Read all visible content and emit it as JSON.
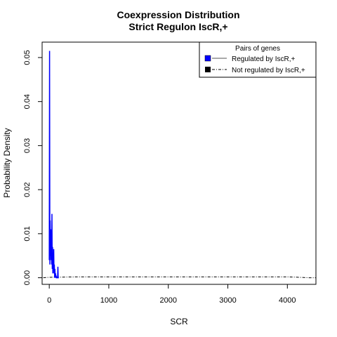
{
  "chart_data": {
    "type": "line",
    "title": "Coexpression Distribution",
    "subtitle": "Strict Regulon IscR,+",
    "xlabel": "SCR",
    "ylabel": "Probability Density",
    "xlim": [
      -120,
      4480
    ],
    "ylim": [
      -0.0015,
      0.0535
    ],
    "x_ticks": [
      0,
      1000,
      2000,
      3000,
      4000
    ],
    "x_tick_labels": [
      "0",
      "1000",
      "2000",
      "3000",
      "4000"
    ],
    "y_ticks": [
      0.0,
      0.01,
      0.02,
      0.03,
      0.04,
      0.05
    ],
    "y_tick_labels": [
      "0.00",
      "0.01",
      "0.02",
      "0.03",
      "0.04",
      "0.05"
    ],
    "grid": false,
    "legend": {
      "title": "Pairs of genes",
      "placement": "top-right",
      "entries": [
        {
          "label": "Regulated by  IscR,+",
          "color": "#0000ff",
          "line": "solid"
        },
        {
          "label": "Not regulated by  IscR,+",
          "color": "#000000",
          "line": "dashdot"
        }
      ]
    },
    "series": [
      {
        "name": "Regulated by  IscR,+",
        "color": "#0000ff",
        "x": [
          0,
          5,
          10,
          15,
          20,
          25,
          30,
          35,
          40,
          45,
          50,
          55,
          60,
          65,
          70,
          75,
          80,
          85,
          90,
          95,
          100,
          105,
          110,
          115,
          120,
          125,
          130,
          135,
          140,
          145,
          150,
          155,
          160
        ],
        "y": [
          0.004,
          0.0515,
          0.003,
          0.013,
          0.005,
          0.011,
          0.004,
          0.009,
          0.003,
          0.0145,
          0.002,
          0.007,
          0.001,
          0.004,
          0.002,
          0.0065,
          0.001,
          0.003,
          0.0,
          0.002,
          0.0,
          0.001,
          0.0,
          0.0005,
          0.0,
          0.0,
          0.0,
          0.0,
          0.0,
          0.0025,
          0.0,
          0.0,
          0.0
        ]
      },
      {
        "name": "Not regulated by  IscR,+",
        "color": "#000000",
        "x": [
          -100,
          0,
          500,
          1000,
          1500,
          2000,
          2500,
          3000,
          3500,
          3800,
          4000,
          4200,
          4350,
          4480
        ],
        "y": [
          0.0,
          0.0001,
          0.0002,
          0.0002,
          0.0002,
          0.0002,
          0.0002,
          0.0002,
          0.0002,
          0.0002,
          0.0002,
          0.0001,
          0.0,
          0.0
        ]
      }
    ]
  }
}
